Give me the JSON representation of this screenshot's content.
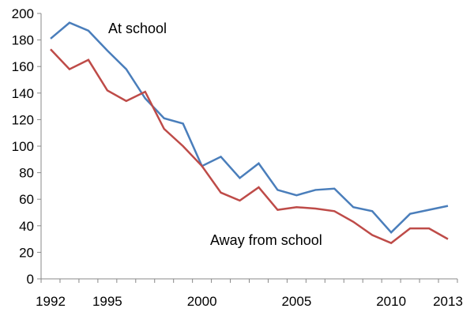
{
  "chart_data": {
    "type": "line",
    "title": "",
    "xlabel": "",
    "ylabel": "",
    "x": [
      1992,
      1993,
      1994,
      1995,
      1996,
      1997,
      1998,
      1999,
      2000,
      2001,
      2002,
      2003,
      2004,
      2005,
      2006,
      2007,
      2008,
      2009,
      2010,
      2011,
      2012,
      2013
    ],
    "xlim": [
      1992,
      2013
    ],
    "ylim": [
      0,
      200
    ],
    "y_ticks": [
      "0",
      "20",
      "40",
      "60",
      "80",
      "100",
      "120",
      "140",
      "160",
      "180",
      "200"
    ],
    "x_ticks": [
      "1992",
      "1995",
      "2000",
      "2005",
      "2010",
      "2013"
    ],
    "grid": false,
    "series": [
      {
        "name": "At school",
        "color": "#4a7ebb",
        "values": [
          181,
          193,
          187,
          172,
          158,
          136,
          121,
          117,
          85,
          92,
          76,
          87,
          67,
          63,
          67,
          68,
          54,
          51,
          35,
          49,
          52,
          55
        ]
      },
      {
        "name": "Away from school",
        "color": "#be4b48",
        "values": [
          173,
          158,
          165,
          142,
          134,
          141,
          113,
          100,
          85,
          65,
          59,
          69,
          52,
          54,
          53,
          51,
          43,
          33,
          27,
          38,
          38,
          30
        ]
      }
    ]
  }
}
